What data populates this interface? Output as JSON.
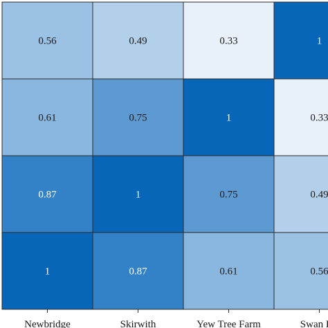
{
  "chart_data": {
    "type": "heatmap",
    "title": "",
    "xlabel": "",
    "ylabel": "",
    "x_categories": [
      "Newbridge",
      "Skirwith",
      "Yew Tree Farm",
      "Swan Ho"
    ],
    "rows": [
      {
        "values": [
          0.56,
          0.49,
          0.33,
          1
        ]
      },
      {
        "values": [
          0.61,
          0.75,
          1,
          0.33
        ]
      },
      {
        "values": [
          0.87,
          1,
          0.75,
          0.49
        ]
      },
      {
        "values": [
          1,
          0.87,
          0.61,
          0.56
        ]
      }
    ],
    "value_labels": [
      [
        "0.56",
        "0.49",
        "0.33",
        "1"
      ],
      [
        "0.61",
        "0.75",
        "1",
        "0.33"
      ],
      [
        "0.87",
        "1",
        "0.75",
        "0.49"
      ],
      [
        "1",
        "0.87",
        "0.61",
        "0.56"
      ]
    ],
    "color_scale": {
      "low": "#e8f1fa",
      "high": "#0866b9",
      "min": 0.33,
      "max": 1
    },
    "grid": true
  }
}
